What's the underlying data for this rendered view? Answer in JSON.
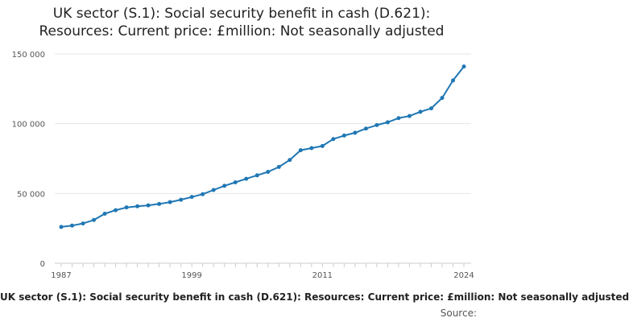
{
  "chart_data": {
    "type": "line",
    "title_lines": [
      "UK sector (S.1): Social security benefit in cash (D.621):",
      "Resources: Current price: £million: Not seasonally adjusted"
    ],
    "series": [
      {
        "name": "UK sector (S.1): Social security benefit in cash (D.621): Resources: Current price: £million: Not seasonally adjusted",
        "color": "#1f77b4",
        "x": [
          1987,
          1988,
          1989,
          1990,
          1991,
          1992,
          1993,
          1994,
          1995,
          1996,
          1997,
          1998,
          1999,
          2000,
          2001,
          2002,
          2003,
          2004,
          2005,
          2006,
          2007,
          2008,
          2009,
          2010,
          2011,
          2012,
          2013,
          2014,
          2015,
          2016,
          2017,
          2018,
          2019,
          2020,
          2021,
          2022,
          2023,
          2024
        ],
        "values": [
          26000,
          27000,
          28500,
          31000,
          35500,
          38000,
          40000,
          40800,
          41500,
          42500,
          43800,
          45500,
          47500,
          49500,
          52500,
          55500,
          58000,
          60500,
          63000,
          65500,
          69000,
          74000,
          81000,
          82500,
          84000,
          89000,
          91500,
          93500,
          96500,
          99000,
          101000,
          104000,
          105500,
          108500,
          111000,
          118500,
          131000,
          141000
        ]
      }
    ],
    "x_ticks": [
      "1987",
      "1999",
      "2011",
      "2024"
    ],
    "y_ticks": [
      {
        "value": 0,
        "label": "0"
      },
      {
        "value": 50000,
        "label": "50 000"
      },
      {
        "value": 100000,
        "label": "100 000"
      },
      {
        "value": 150000,
        "label": "150 000"
      }
    ],
    "xlim": [
      1987,
      2024
    ],
    "ylim": [
      0,
      150000
    ],
    "legend_text": "UK sector (S.1): Social security benefit in cash (D.621): Resources: Current price: £million: Not seasonally adjusted",
    "source_label": "Source:"
  }
}
